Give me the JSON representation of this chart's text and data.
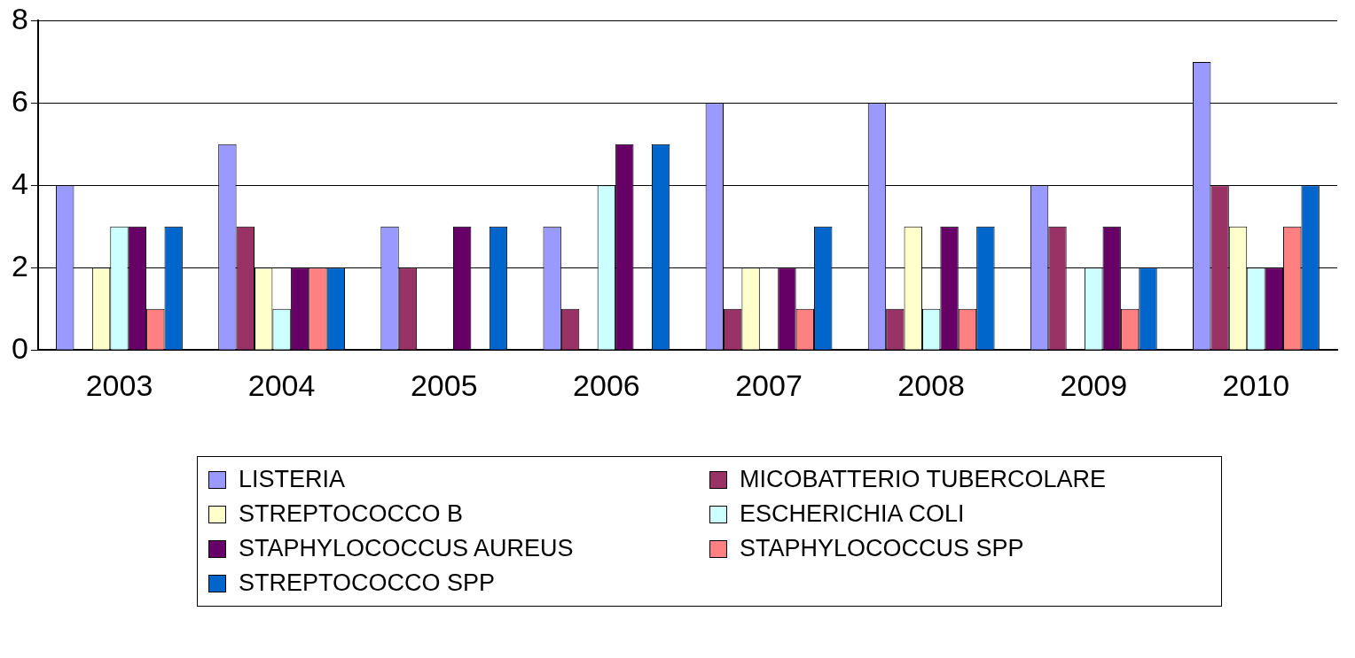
{
  "chart_data": {
    "type": "bar",
    "categories": [
      "2003",
      "2004",
      "2005",
      "2006",
      "2007",
      "2008",
      "2009",
      "2010"
    ],
    "series": [
      {
        "name": "LISTERIA",
        "color": "#9999ff",
        "values": [
          4,
          5,
          3,
          3,
          6,
          6,
          4,
          7
        ]
      },
      {
        "name": "MICOBATTERIO TUBERCOLARE",
        "color": "#993366",
        "values": [
          0,
          3,
          2,
          1,
          1,
          1,
          3,
          4
        ]
      },
      {
        "name": "STREPTOCOCCO B",
        "color": "#ffffcc",
        "values": [
          2,
          2,
          0,
          0,
          2,
          3,
          0,
          3
        ]
      },
      {
        "name": "ESCHERICHIA COLI",
        "color": "#ccffff",
        "values": [
          3,
          1,
          0,
          4,
          0,
          1,
          2,
          2
        ]
      },
      {
        "name": "STAPHYLOCOCCUS AUREUS",
        "color": "#660066",
        "values": [
          3,
          2,
          3,
          5,
          2,
          3,
          3,
          2
        ]
      },
      {
        "name": "STAPHYLOCOCCUS SPP",
        "color": "#ff8080",
        "values": [
          1,
          2,
          0,
          0,
          1,
          1,
          1,
          3
        ]
      },
      {
        "name": "STREPTOCOCCO SPP",
        "color": "#0066cc",
        "values": [
          3,
          2,
          3,
          5,
          3,
          3,
          2,
          4
        ]
      }
    ],
    "ylim": [
      0,
      8
    ],
    "yticks": [
      0,
      2,
      4,
      6,
      8
    ],
    "grid": "y",
    "legend": "bottom"
  }
}
